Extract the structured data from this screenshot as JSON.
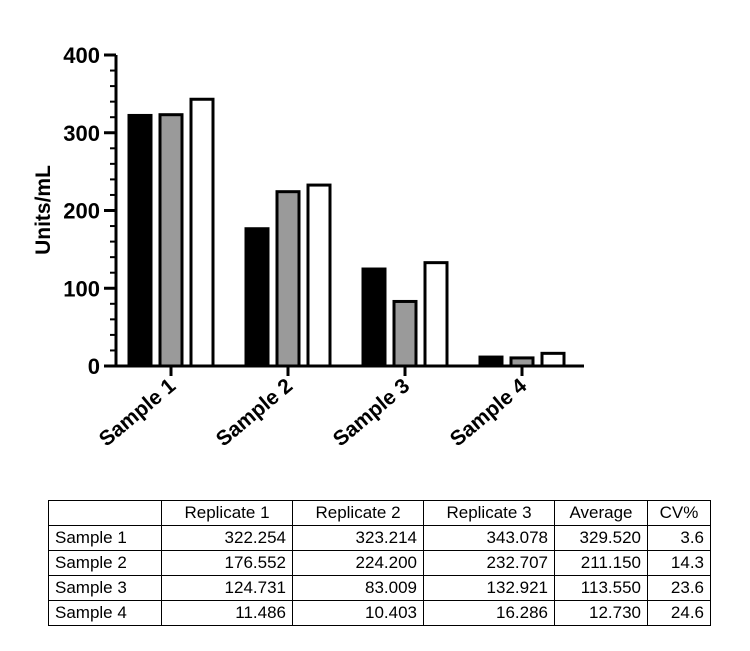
{
  "chart_data": {
    "type": "bar",
    "ylabel": "Units/mL",
    "xlabel": "",
    "ylim": [
      0,
      400
    ],
    "yticks": [
      0,
      100,
      200,
      300,
      400
    ],
    "categories": [
      "Sample 1",
      "Sample 2",
      "Sample 3",
      "Sample 4"
    ],
    "series": [
      {
        "name": "Replicate 1",
        "color": "#000000",
        "values": [
          322.254,
          176.552,
          124.731,
          11.486
        ]
      },
      {
        "name": "Replicate 2",
        "color": "#9a9a9a",
        "values": [
          323.214,
          224.2,
          83.009,
          10.403
        ]
      },
      {
        "name": "Replicate 3",
        "color": "#ffffff",
        "values": [
          343.078,
          232.707,
          132.921,
          16.286
        ]
      }
    ],
    "grid": false
  },
  "table": {
    "headers": [
      "",
      "Replicate 1",
      "Replicate 2",
      "Replicate 3",
      "Average",
      "CV%"
    ],
    "rows": [
      [
        "Sample 1",
        "322.254",
        "323.214",
        "343.078",
        "329.520",
        "3.6"
      ],
      [
        "Sample 2",
        "176.552",
        "224.200",
        "232.707",
        "211.150",
        "14.3"
      ],
      [
        "Sample 3",
        "124.731",
        "83.009",
        "132.921",
        "113.550",
        "23.6"
      ],
      [
        "Sample 4",
        "11.486",
        "10.403",
        "16.286",
        "12.730",
        "24.6"
      ]
    ]
  }
}
